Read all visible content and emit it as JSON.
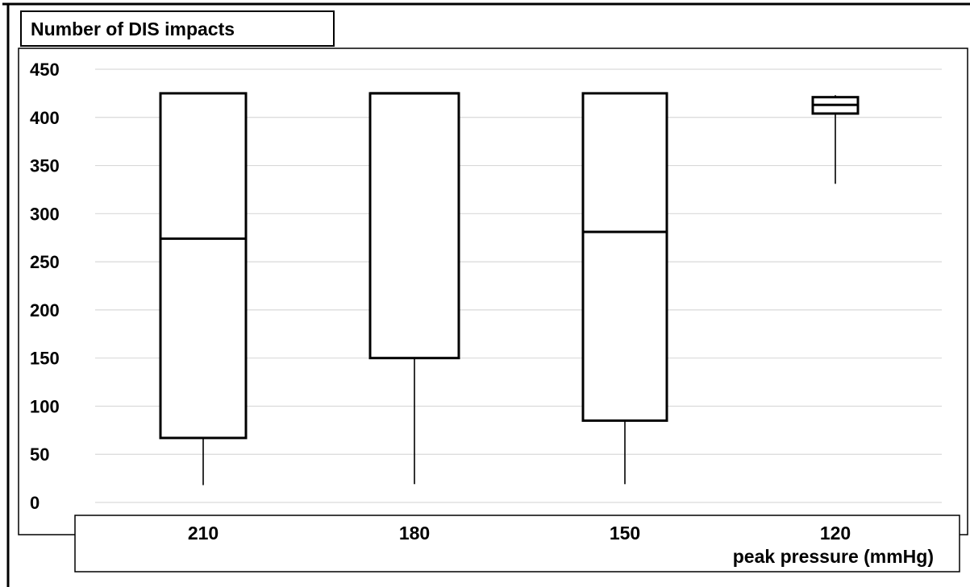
{
  "chart_data": {
    "type": "boxplot",
    "title": "Number of DIS impacts",
    "xlabel": "peak pressure (mmHg)",
    "ylabel": "",
    "ylim": [
      0,
      450
    ],
    "yticks": [
      0,
      50,
      100,
      150,
      200,
      250,
      300,
      350,
      400,
      450
    ],
    "grid": true,
    "categories": [
      "210",
      "180",
      "150",
      "120"
    ],
    "boxes": [
      {
        "category": "210",
        "whisker_low": 18,
        "q1": 67,
        "median": 274,
        "q3": 425,
        "whisker_high": 425
      },
      {
        "category": "180",
        "whisker_low": 19,
        "q1": 150,
        "median": 425,
        "q3": 425,
        "whisker_high": 425
      },
      {
        "category": "150",
        "whisker_low": 19,
        "q1": 85,
        "median": 281,
        "q3": 425,
        "whisker_high": 425
      },
      {
        "category": "120",
        "whisker_low": 331,
        "q1": 404,
        "median": 413,
        "q3": 421,
        "whisker_high": 423
      }
    ]
  },
  "colors": {
    "box_stroke": "#000000",
    "grid": "#d9d9d9",
    "background": "#ffffff"
  }
}
